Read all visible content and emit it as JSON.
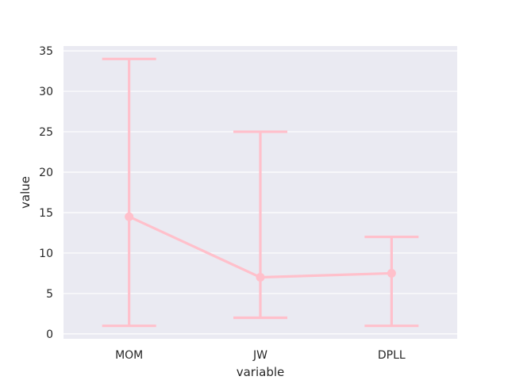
{
  "chart_data": {
    "type": "line",
    "title": "",
    "xlabel": "variable",
    "ylabel": "value",
    "categories": [
      "MOM",
      "JW",
      "DPLL"
    ],
    "values": [
      14.5,
      7.0,
      7.5
    ],
    "error_low": [
      1,
      2,
      1
    ],
    "error_high": [
      34,
      25,
      12
    ],
    "yticks": [
      0,
      5,
      10,
      15,
      20,
      25,
      30,
      35
    ],
    "ylim": [
      -0.6,
      35.6
    ],
    "grid": true,
    "color": "#ffc0cb",
    "plot_background": "#eaeaf2",
    "grid_color": "#ffffff"
  }
}
